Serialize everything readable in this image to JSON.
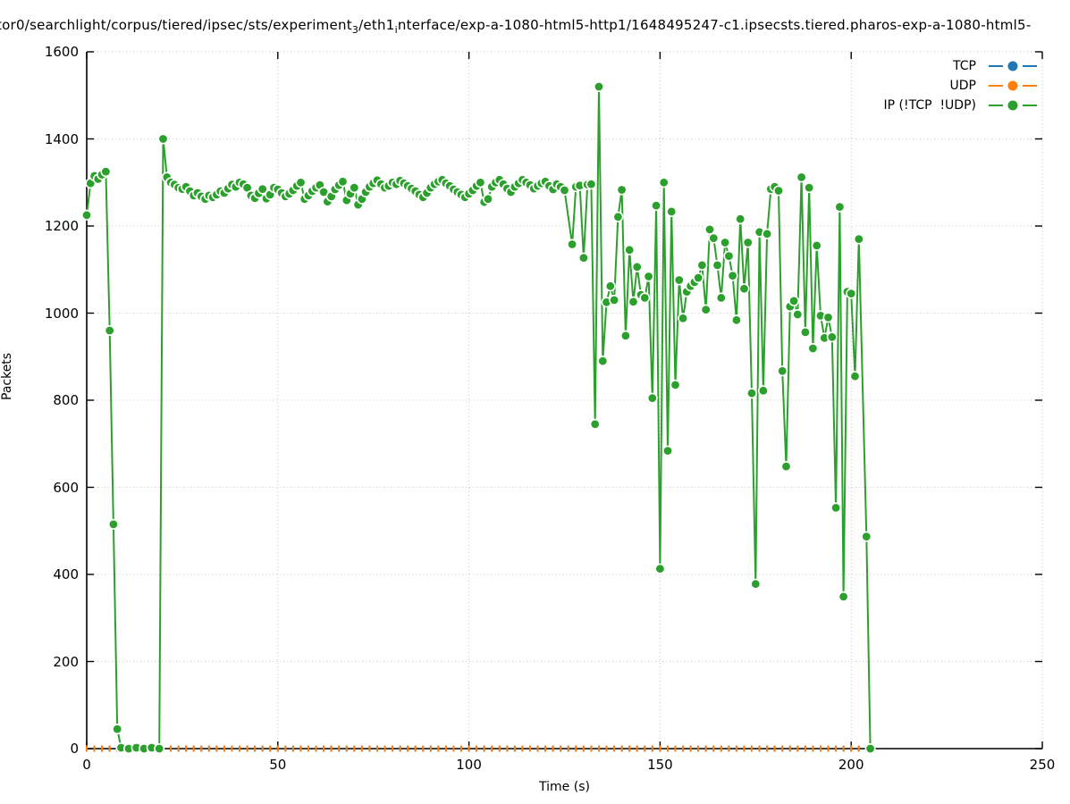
{
  "title": {
    "part1": "tor0/searchlight/corpus/tiered/ipsec/sts/experiment",
    "sub1": "3",
    "part2": "/eth1",
    "sub2": "i",
    "part3": "nterface/exp-a-1080-html5-http1/1648495247-c1.ipsecsts.tiered.pharos-exp-a-1080-html5-"
  },
  "axes": {
    "x": {
      "label": "Time (s)",
      "min": 0,
      "max": 250,
      "ticks": [
        0,
        50,
        100,
        150,
        200,
        250
      ]
    },
    "y": {
      "label": "Packets",
      "min": 0,
      "max": 1600,
      "ticks": [
        0,
        200,
        400,
        600,
        800,
        1000,
        1200,
        1400,
        1600
      ]
    }
  },
  "legend": {
    "items": [
      {
        "label": "TCP",
        "color": "#1f77b4"
      },
      {
        "label": "UDP",
        "color": "#ff7f0e"
      },
      {
        "label": "IP (!TCP  !UDP)",
        "color": "#2ca02c"
      }
    ]
  },
  "colors": {
    "tcp": "#1f77b4",
    "udp": "#ff7f0e",
    "ip": "#2ca02c",
    "grid": "#c6c6c6",
    "axis": "#000000",
    "marker_edge": "#ffffff"
  },
  "chart_data": {
    "type": "line",
    "title": "tor0/searchlight/corpus/tiered/ipsec/sts/experiment3/eth1interface/exp-a-1080-html5-http1/1648495247-c1.ipsecsts.tiered.pharos-exp-a-1080-html5-",
    "xlabel": "Time (s)",
    "ylabel": "Packets",
    "xlim": [
      0,
      250
    ],
    "ylim": [
      0,
      1600
    ],
    "grid": true,
    "legend_position": "top-right",
    "series": [
      {
        "name": "TCP",
        "color": "#1f77b4",
        "marker": "tick",
        "constant": {
          "t_start": 0,
          "t_end": 204,
          "t_step": 2,
          "value": 0
        }
      },
      {
        "name": "UDP",
        "color": "#ff7f0e",
        "marker": "tick",
        "constant": {
          "t_start": 0,
          "t_end": 204,
          "t_step": 2,
          "value": 0
        }
      },
      {
        "name": "IP (!TCP  !UDP)",
        "color": "#2ca02c",
        "marker": "circle",
        "points": [
          [
            0,
            1225
          ],
          [
            1,
            1298
          ],
          [
            2,
            1315
          ],
          [
            3,
            1308
          ],
          [
            4,
            1318
          ],
          [
            5,
            1325
          ],
          [
            6,
            960
          ],
          [
            7,
            515
          ],
          [
            8,
            45
          ],
          [
            9,
            2
          ],
          [
            11,
            0
          ],
          [
            13,
            2
          ],
          [
            15,
            0
          ],
          [
            17,
            2
          ],
          [
            19,
            0
          ],
          [
            20,
            1400
          ],
          [
            21,
            1312
          ],
          [
            22,
            1300
          ],
          [
            23,
            1295
          ],
          [
            24,
            1288
          ],
          [
            25,
            1285
          ],
          [
            26,
            1290
          ],
          [
            27,
            1280
          ],
          [
            28,
            1270
          ],
          [
            29,
            1276
          ],
          [
            30,
            1268
          ],
          [
            31,
            1262
          ],
          [
            32,
            1270
          ],
          [
            33,
            1266
          ],
          [
            34,
            1272
          ],
          [
            35,
            1280
          ],
          [
            36,
            1276
          ],
          [
            37,
            1286
          ],
          [
            38,
            1295
          ],
          [
            39,
            1290
          ],
          [
            40,
            1300
          ],
          [
            41,
            1296
          ],
          [
            42,
            1288
          ],
          [
            43,
            1270
          ],
          [
            44,
            1264
          ],
          [
            45,
            1275
          ],
          [
            46,
            1285
          ],
          [
            47,
            1263
          ],
          [
            48,
            1272
          ],
          [
            49,
            1288
          ],
          [
            50,
            1284
          ],
          [
            51,
            1276
          ],
          [
            52,
            1268
          ],
          [
            53,
            1274
          ],
          [
            54,
            1282
          ],
          [
            55,
            1292
          ],
          [
            56,
            1300
          ],
          [
            57,
            1262
          ],
          [
            58,
            1270
          ],
          [
            59,
            1280
          ],
          [
            60,
            1288
          ],
          [
            61,
            1294
          ],
          [
            62,
            1278
          ],
          [
            63,
            1256
          ],
          [
            64,
            1268
          ],
          [
            65,
            1284
          ],
          [
            66,
            1294
          ],
          [
            67,
            1302
          ],
          [
            68,
            1259
          ],
          [
            69,
            1274
          ],
          [
            70,
            1288
          ],
          [
            71,
            1249
          ],
          [
            72,
            1262
          ],
          [
            73,
            1278
          ],
          [
            74,
            1290
          ],
          [
            75,
            1298
          ],
          [
            76,
            1305
          ],
          [
            77,
            1296
          ],
          [
            78,
            1288
          ],
          [
            79,
            1292
          ],
          [
            80,
            1300
          ],
          [
            81,
            1296
          ],
          [
            82,
            1304
          ],
          [
            83,
            1298
          ],
          [
            84,
            1292
          ],
          [
            85,
            1286
          ],
          [
            86,
            1280
          ],
          [
            87,
            1272
          ],
          [
            88,
            1266
          ],
          [
            89,
            1276
          ],
          [
            90,
            1288
          ],
          [
            91,
            1296
          ],
          [
            92,
            1302
          ],
          [
            93,
            1306
          ],
          [
            94,
            1298
          ],
          [
            95,
            1292
          ],
          [
            96,
            1284
          ],
          [
            97,
            1278
          ],
          [
            98,
            1272
          ],
          [
            99,
            1266
          ],
          [
            100,
            1274
          ],
          [
            101,
            1282
          ],
          [
            102,
            1292
          ],
          [
            103,
            1300
          ],
          [
            104,
            1255
          ],
          [
            105,
            1262
          ],
          [
            106,
            1290
          ],
          [
            107,
            1300
          ],
          [
            108,
            1306
          ],
          [
            109,
            1296
          ],
          [
            110,
            1286
          ],
          [
            111,
            1278
          ],
          [
            112,
            1290
          ],
          [
            113,
            1298
          ],
          [
            114,
            1306
          ],
          [
            115,
            1300
          ],
          [
            116,
            1294
          ],
          [
            117,
            1286
          ],
          [
            118,
            1292
          ],
          [
            119,
            1298
          ],
          [
            120,
            1302
          ],
          [
            121,
            1292
          ],
          [
            122,
            1284
          ],
          [
            123,
            1296
          ],
          [
            124,
            1290
          ],
          [
            125,
            1282
          ],
          [
            127,
            1158
          ],
          [
            128,
            1290
          ],
          [
            129,
            1293
          ],
          [
            130,
            1127
          ],
          [
            131,
            1295
          ],
          [
            132,
            1296
          ],
          [
            133,
            745
          ],
          [
            134,
            1520
          ],
          [
            135,
            890
          ],
          [
            136,
            1025
          ],
          [
            137,
            1062
          ],
          [
            138,
            1030
          ],
          [
            139,
            1221
          ],
          [
            140,
            1283
          ],
          [
            141,
            948
          ],
          [
            142,
            1145
          ],
          [
            143,
            1026
          ],
          [
            144,
            1106
          ],
          [
            145,
            1042
          ],
          [
            146,
            1035
          ],
          [
            147,
            1084
          ],
          [
            148,
            805
          ],
          [
            149,
            1247
          ],
          [
            150,
            413
          ],
          [
            151,
            1300
          ],
          [
            152,
            684
          ],
          [
            153,
            1233
          ],
          [
            154,
            835
          ],
          [
            155,
            1076
          ],
          [
            156,
            988
          ],
          [
            157,
            1049
          ],
          [
            158,
            1062
          ],
          [
            159,
            1071
          ],
          [
            160,
            1081
          ],
          [
            161,
            1110
          ],
          [
            162,
            1008
          ],
          [
            163,
            1192
          ],
          [
            164,
            1172
          ],
          [
            165,
            1110
          ],
          [
            166,
            1035
          ],
          [
            167,
            1162
          ],
          [
            168,
            1131
          ],
          [
            169,
            1086
          ],
          [
            170,
            984
          ],
          [
            171,
            1216
          ],
          [
            172,
            1056
          ],
          [
            173,
            1162
          ],
          [
            174,
            816
          ],
          [
            175,
            378
          ],
          [
            176,
            1186
          ],
          [
            177,
            822
          ],
          [
            178,
            1182
          ],
          [
            179,
            1285
          ],
          [
            180,
            1290
          ],
          [
            181,
            1281
          ],
          [
            182,
            867
          ],
          [
            183,
            648
          ],
          [
            184,
            1015
          ],
          [
            185,
            1028
          ],
          [
            186,
            997
          ],
          [
            187,
            1312
          ],
          [
            188,
            956
          ],
          [
            189,
            1288
          ],
          [
            190,
            919
          ],
          [
            191,
            1155
          ],
          [
            192,
            994
          ],
          [
            193,
            943
          ],
          [
            194,
            990
          ],
          [
            195,
            945
          ],
          [
            196,
            553
          ],
          [
            197,
            1244
          ],
          [
            198,
            349
          ],
          [
            199,
            1049
          ],
          [
            200,
            1045
          ],
          [
            201,
            855
          ],
          [
            202,
            1170
          ],
          [
            204,
            487
          ],
          [
            205,
            0
          ]
        ]
      }
    ]
  }
}
